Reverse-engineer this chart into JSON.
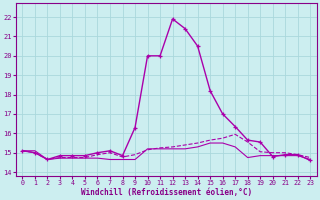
{
  "bg_color": "#cceef0",
  "grid_color": "#aad8dc",
  "line_color": "#aa00aa",
  "marker_color": "#aa00aa",
  "xlim": [
    -0.5,
    23.5
  ],
  "ylim": [
    13.8,
    22.7
  ],
  "yticks": [
    14,
    15,
    16,
    17,
    18,
    19,
    20,
    21,
    22
  ],
  "xticks": [
    0,
    1,
    2,
    3,
    4,
    5,
    6,
    7,
    8,
    9,
    10,
    11,
    12,
    13,
    14,
    15,
    16,
    17,
    18,
    19,
    20,
    21,
    22,
    23
  ],
  "xlabel": "Windchill (Refroidissement éolien,°C)",
  "series": [
    {
      "x": [
        0,
        1,
        2,
        3,
        4,
        5,
        6,
        7,
        8,
        9,
        10,
        11,
        12,
        13,
        14,
        15,
        16,
        17,
        18,
        19,
        20,
        21,
        22,
        23
      ],
      "y": [
        15.1,
        15.1,
        14.65,
        14.72,
        14.72,
        14.72,
        14.72,
        14.65,
        14.65,
        14.65,
        15.2,
        15.2,
        15.2,
        15.2,
        15.3,
        15.5,
        15.5,
        15.3,
        14.75,
        14.85,
        14.85,
        14.85,
        14.85,
        14.65
      ],
      "with_markers": false,
      "lw": 0.8,
      "dashed": false
    },
    {
      "x": [
        0,
        1,
        2,
        3,
        4,
        5,
        6,
        7,
        8,
        9,
        10,
        11,
        12,
        13,
        14,
        15,
        16,
        17,
        18,
        19,
        20,
        21,
        22,
        23
      ],
      "y": [
        15.1,
        15.0,
        14.65,
        14.75,
        14.75,
        14.75,
        14.9,
        15.0,
        14.78,
        14.9,
        15.15,
        15.25,
        15.3,
        15.4,
        15.5,
        15.65,
        15.75,
        15.95,
        15.55,
        15.05,
        15.0,
        15.0,
        14.9,
        14.75
      ],
      "with_markers": false,
      "lw": 0.8,
      "dashed": true
    },
    {
      "x": [
        0,
        1,
        2,
        3,
        4,
        5,
        6,
        7,
        8,
        9,
        10,
        11,
        12,
        13,
        14,
        15,
        16,
        17,
        18,
        19,
        20,
        21,
        22,
        23
      ],
      "y": [
        15.1,
        15.0,
        14.65,
        14.85,
        14.85,
        14.85,
        15.0,
        15.1,
        14.85,
        16.3,
        20.0,
        20.0,
        21.9,
        21.4,
        20.5,
        18.2,
        17.0,
        16.35,
        15.65,
        15.55,
        14.8,
        14.9,
        14.9,
        14.6
      ],
      "with_markers": true,
      "lw": 1.0,
      "dashed": false
    }
  ]
}
